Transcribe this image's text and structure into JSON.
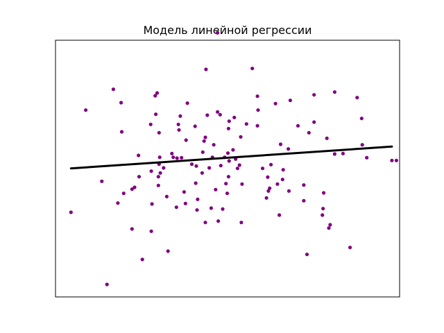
{
  "chart_data": {
    "type": "scatter",
    "title": "Модель линейной регрессии",
    "xlabel": "",
    "ylabel": "",
    "xlim": [
      -2.72,
      2.63
    ],
    "ylim": [
      -2.9,
      2.65
    ],
    "grid": false,
    "ticks": false,
    "point_color": "#800080",
    "line_color": "#000000",
    "points": [
      [
        -2.48,
        -1.07
      ],
      [
        -2.25,
        1.14
      ],
      [
        -2.0,
        -0.4
      ],
      [
        -1.92,
        -2.63
      ],
      [
        -1.82,
        1.59
      ],
      [
        -1.75,
        -0.87
      ],
      [
        -1.7,
        1.3
      ],
      [
        -1.69,
        0.67
      ],
      [
        -1.66,
        -0.66
      ],
      [
        -1.53,
        -0.57
      ],
      [
        -1.53,
        -1.43
      ],
      [
        -1.49,
        -0.53
      ],
      [
        -1.43,
        0.16
      ],
      [
        -1.42,
        -0.3
      ],
      [
        -1.37,
        -2.09
      ],
      [
        -1.24,
        0.83
      ],
      [
        -1.23,
        -0.18
      ],
      [
        -1.22,
        -0.89
      ],
      [
        -1.23,
        -1.48
      ],
      [
        -1.17,
        1.45
      ],
      [
        -1.16,
        1.05
      ],
      [
        -1.14,
        1.51
      ],
      [
        -1.12,
        -0.3
      ],
      [
        -1.12,
        -0.49
      ],
      [
        -1.11,
        0.65
      ],
      [
        -1.1,
        0.12
      ],
      [
        -1.11,
        -0.03
      ],
      [
        -1.09,
        -0.22
      ],
      [
        -1.04,
        -0.11
      ],
      [
        -0.99,
        -0.73
      ],
      [
        -0.97,
        -1.91
      ],
      [
        -0.91,
        0.2
      ],
      [
        -0.89,
        0.12
      ],
      [
        -0.83,
        0.1
      ],
      [
        -0.84,
        -0.96
      ],
      [
        -0.81,
        0.83
      ],
      [
        -0.8,
        0.71
      ],
      [
        -0.78,
        1.01
      ],
      [
        -0.76,
        0.11
      ],
      [
        -0.72,
        -0.63
      ],
      [
        -0.69,
        0.49
      ],
      [
        -0.7,
        -0.88
      ],
      [
        -0.67,
        1.29
      ],
      [
        -0.6,
        -0.03
      ],
      [
        -0.55,
        0.79
      ],
      [
        -0.54,
        -0.44
      ],
      [
        -0.53,
        -0.07
      ],
      [
        -0.52,
        -1.02
      ],
      [
        -0.51,
        -0.79
      ],
      [
        -0.44,
        -0.22
      ],
      [
        -0.43,
        0.23
      ],
      [
        -0.41,
        0.47
      ],
      [
        -0.39,
        0.55
      ],
      [
        -0.39,
        -1.29
      ],
      [
        -0.38,
        2.02
      ],
      [
        -0.36,
        1.03
      ],
      [
        -0.33,
        -0.11
      ],
      [
        -0.3,
        -0.98
      ],
      [
        -0.28,
        0.12
      ],
      [
        -0.26,
        0.39
      ],
      [
        -0.23,
        -0.58
      ],
      [
        -0.2,
        2.81
      ],
      [
        -0.19,
        -1.26
      ],
      [
        -0.2,
        1.1
      ],
      [
        -0.16,
        1.04
      ],
      [
        -0.15,
        -0.06
      ],
      [
        -0.12,
        -1.0
      ],
      [
        -0.09,
        0.12
      ],
      [
        -0.07,
        -0.45
      ],
      [
        -0.04,
        0.21
      ],
      [
        -0.05,
        -0.66
      ],
      [
        -0.03,
        0.74
      ],
      [
        -0.02,
        0.9
      ],
      [
        -0.02,
        0.04
      ],
      [
        -0.03,
        -0.3
      ],
      [
        0.04,
        0.28
      ],
      [
        0.06,
        0.98
      ],
      [
        0.08,
        0.08
      ],
      [
        0.11,
        -0.12
      ],
      [
        0.14,
        -0.05
      ],
      [
        0.16,
        0.56
      ],
      [
        0.18,
        -0.46
      ],
      [
        0.17,
        -1.29
      ],
      [
        0.25,
        0.84
      ],
      [
        0.34,
        2.04
      ],
      [
        0.42,
        0.8
      ],
      [
        0.42,
        1.44
      ],
      [
        0.43,
        1.14
      ],
      [
        0.5,
        -0.12
      ],
      [
        0.56,
        -0.76
      ],
      [
        0.58,
        -0.31
      ],
      [
        0.59,
        -0.61
      ],
      [
        0.61,
        -0.55
      ],
      [
        0.63,
        -0.04
      ],
      [
        0.7,
        1.28
      ],
      [
        0.73,
        -0.46
      ],
      [
        0.76,
        -1.13
      ],
      [
        0.78,
        0.4
      ],
      [
        0.81,
        -0.36
      ],
      [
        0.82,
        -0.15
      ],
      [
        0.9,
        0.3
      ],
      [
        0.91,
        -0.61
      ],
      [
        0.93,
        1.35
      ],
      [
        1.05,
        0.8
      ],
      [
        1.14,
        -0.82
      ],
      [
        1.14,
        -0.48
      ],
      [
        1.19,
        -1.98
      ],
      [
        1.22,
        0.65
      ],
      [
        1.3,
        1.47
      ],
      [
        1.3,
        0.88
      ],
      [
        1.43,
        -1.13
      ],
      [
        1.44,
        -0.99
      ],
      [
        1.45,
        -0.65
      ],
      [
        1.5,
        0.53
      ],
      [
        1.53,
        -1.41
      ],
      [
        1.55,
        -1.34
      ],
      [
        1.62,
        0.19
      ],
      [
        1.62,
        1.53
      ],
      [
        1.75,
        0.2
      ],
      [
        1.86,
        -1.83
      ],
      [
        1.97,
        1.41
      ],
      [
        2.04,
        0.96
      ],
      [
        2.05,
        0.39
      ],
      [
        2.12,
        0.11
      ],
      [
        2.51,
        0.05
      ],
      [
        2.58,
        0.05
      ]
    ],
    "regression_line": {
      "x": [
        -2.48,
        2.51
      ],
      "y": [
        -0.12,
        0.35
      ]
    }
  }
}
